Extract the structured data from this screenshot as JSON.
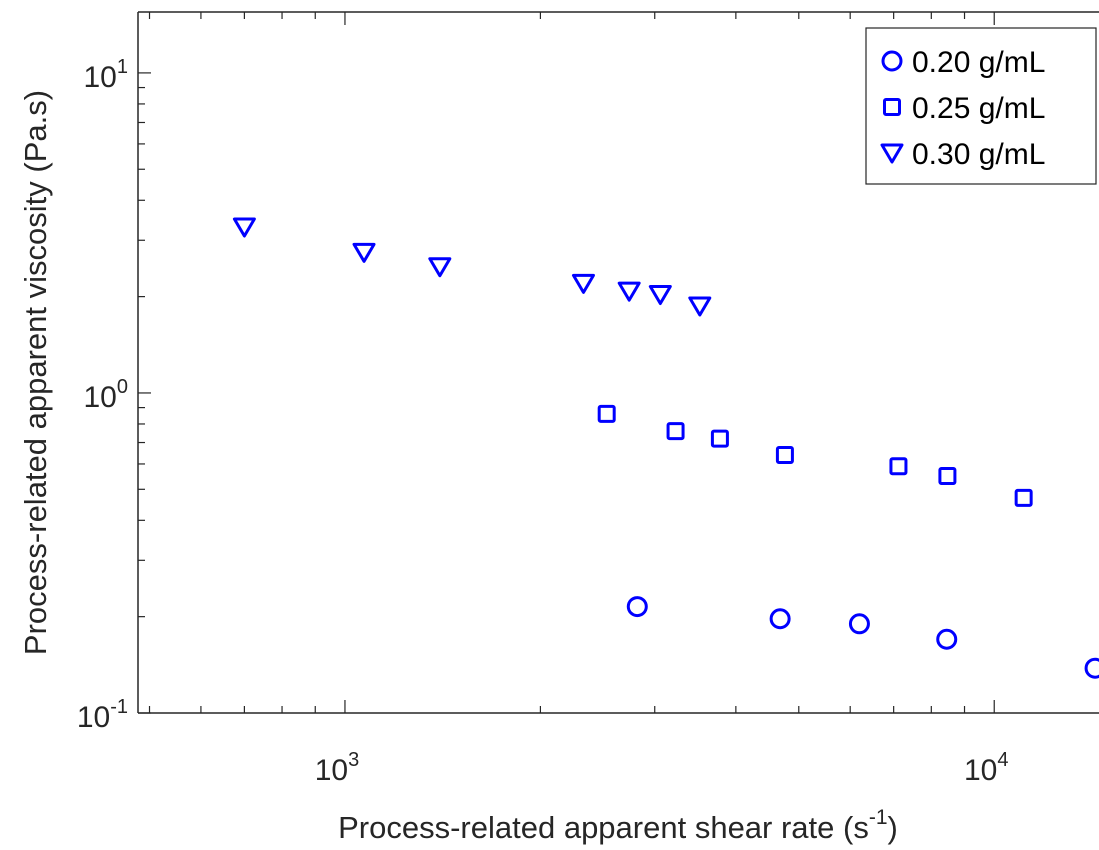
{
  "chart_data": {
    "type": "scatter",
    "xscale": "log",
    "yscale": "log",
    "xlim": [
      480,
      14500
    ],
    "ylim": [
      0.1,
      15.5
    ],
    "xticks": [
      {
        "base": "10",
        "exp": "3",
        "value": 1000
      },
      {
        "base": "10",
        "exp": "4",
        "value": 10000
      }
    ],
    "yticks": [
      {
        "base": "10",
        "exp": "-1",
        "value": 0.1
      },
      {
        "base": "10",
        "exp": "0",
        "value": 1
      },
      {
        "base": "10",
        "exp": "1",
        "value": 10
      }
    ],
    "xlabel": {
      "text": "Process-related apparent shear rate (s",
      "sup": "-1",
      "tail": ")"
    },
    "ylabel": "Process-related apparent viscosity (Pa.s)",
    "grid": false,
    "legend_position": "top-right",
    "marker_color": "#0000ff",
    "series": [
      {
        "name": "0.20 g/mL",
        "marker": "circle",
        "x": [
          2820,
          4680,
          6200,
          8450,
          14300
        ],
        "y": [
          0.215,
          0.197,
          0.19,
          0.17,
          0.138
        ]
      },
      {
        "name": "0.25 g/mL",
        "marker": "square",
        "x": [
          2530,
          3230,
          3780,
          4760,
          7120,
          8470,
          11100
        ],
        "y": [
          0.86,
          0.76,
          0.72,
          0.64,
          0.59,
          0.55,
          0.47
        ]
      },
      {
        "name": "0.30 g/mL",
        "marker": "triangle-down",
        "x": [
          700,
          1070,
          1400,
          2330,
          2740,
          3060,
          3520
        ],
        "y": [
          3.3,
          2.75,
          2.48,
          2.2,
          2.08,
          2.03,
          1.87
        ]
      }
    ]
  }
}
